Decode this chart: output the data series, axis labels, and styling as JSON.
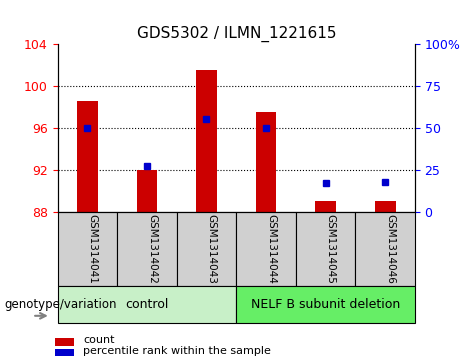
{
  "title": "GDS5302 / ILMN_1221615",
  "samples": [
    "GSM1314041",
    "GSM1314042",
    "GSM1314043",
    "GSM1314044",
    "GSM1314045",
    "GSM1314046"
  ],
  "counts": [
    98.5,
    92.0,
    101.5,
    97.5,
    89.0,
    89.0
  ],
  "percentiles": [
    50,
    27,
    55,
    50,
    17,
    18
  ],
  "ylim_left": [
    88,
    104
  ],
  "ylim_right": [
    0,
    100
  ],
  "yticks_left": [
    88,
    92,
    96,
    100,
    104
  ],
  "yticks_right": [
    0,
    25,
    50,
    75,
    100
  ],
  "ytick_labels_right": [
    "0",
    "25",
    "50",
    "75",
    "100%"
  ],
  "bar_color": "#cc0000",
  "dot_color": "#0000cc",
  "bar_width": 0.35,
  "bar_bottom": 88,
  "grid_ticks": [
    92,
    96,
    100
  ],
  "group1_label": "control",
  "group2_label": "NELF B subunit deletion",
  "group1_indices": [
    0,
    1,
    2
  ],
  "group2_indices": [
    3,
    4,
    5
  ],
  "group1_bg": "#c8f0c8",
  "group2_bg": "#66ee66",
  "sample_area_bg": "#d0d0d0",
  "legend_count_label": "count",
  "legend_pct_label": "percentile rank within the sample",
  "arrow_label": "genotype/variation"
}
